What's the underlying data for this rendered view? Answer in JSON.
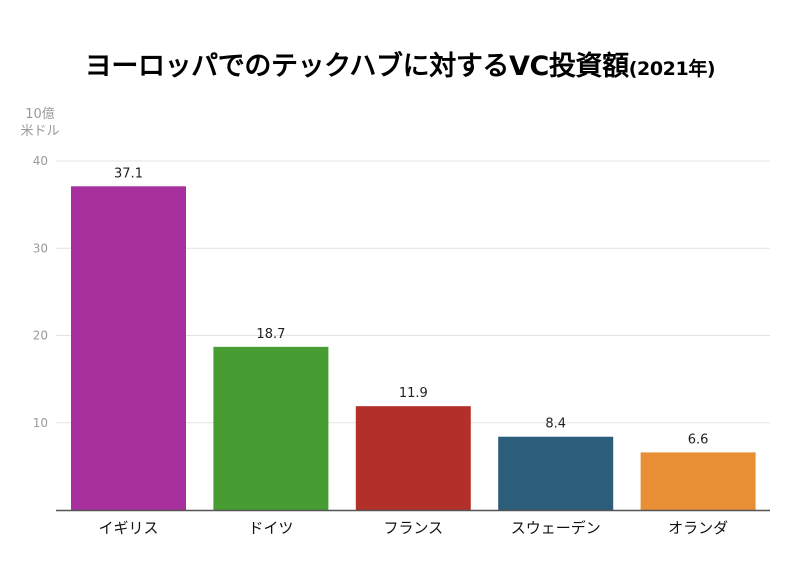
{
  "chart_data": {
    "type": "bar",
    "title": "ヨーロッパでのテックハブに対するVC投資額",
    "title_suffix": "(2021年)",
    "ylabel_lines": [
      "10億",
      "米ドル"
    ],
    "xlabel": "",
    "categories": [
      "イギリス",
      "ドイツ",
      "フランス",
      "スウェーデン",
      "オランダ"
    ],
    "values": [
      37.1,
      18.7,
      11.9,
      8.4,
      6.6
    ],
    "value_labels": [
      "37.1",
      "18.7",
      "11.9",
      "8.4",
      "6.6"
    ],
    "colors": [
      "#a8309e",
      "#479c32",
      "#b3302a",
      "#2c5d7a",
      "#e88e34"
    ],
    "ylim": [
      0,
      40
    ],
    "yticks": [
      10,
      20,
      30,
      40
    ],
    "ytick_labels": [
      "10",
      "20",
      "30",
      "40"
    ],
    "grid": true,
    "legend": "none"
  }
}
